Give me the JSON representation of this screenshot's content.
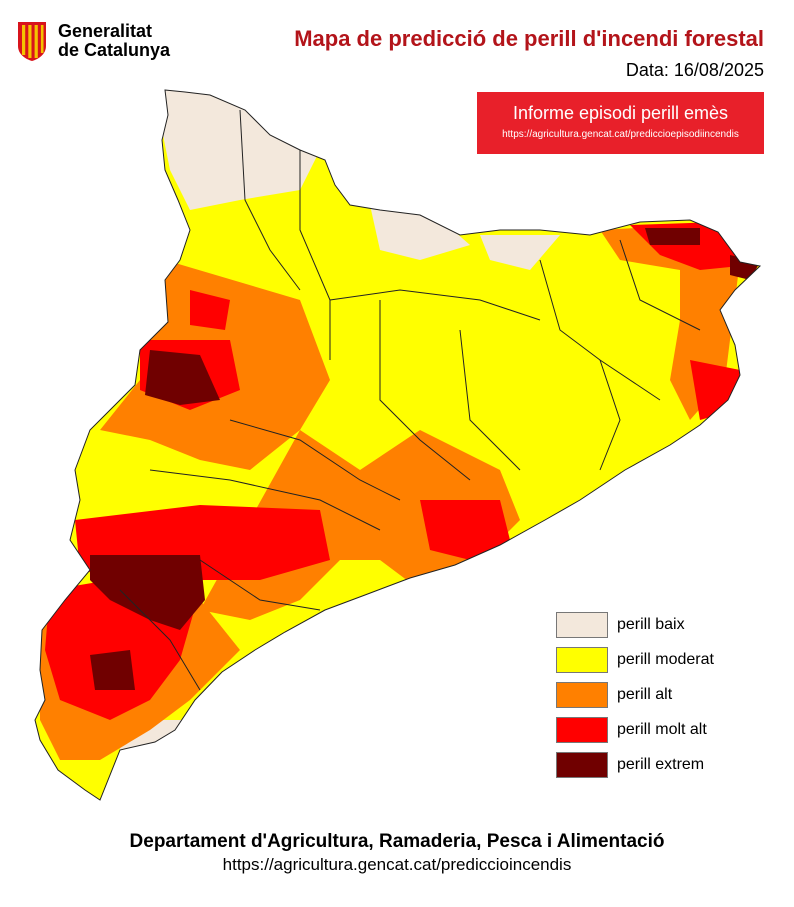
{
  "header": {
    "org_line1": "Generalitat",
    "org_line2": "de Catalunya",
    "title": "Mapa de predicció de perill d'incendi forestal",
    "date_text": "Data: 16/08/2025"
  },
  "banner": {
    "title": "Informe episodi perill emès",
    "url": "https://agricultura.gencat.cat/prediccioepisodiincendis",
    "color": "#e8202a"
  },
  "legend": [
    {
      "key": "baix",
      "label": "perill baix",
      "color": "#f3e8dc"
    },
    {
      "key": "moderat",
      "label": "perill moderat",
      "color": "#ffff00"
    },
    {
      "key": "alt",
      "label": "perill alt",
      "color": "#ff8000"
    },
    {
      "key": "moltalt",
      "label": "perill molt alt",
      "color": "#ff0000"
    },
    {
      "key": "extrem",
      "label": "perill extrem",
      "color": "#700000"
    }
  ],
  "footer": {
    "department": "Departament d'Agricultura, Ramaderia, Pesca i Alimentació",
    "url": "https://agricultura.gencat.cat/prediccioincendis"
  },
  "map": {
    "colors": {
      "background_fill": "#ffff00",
      "county_borders": "#222222"
    }
  }
}
